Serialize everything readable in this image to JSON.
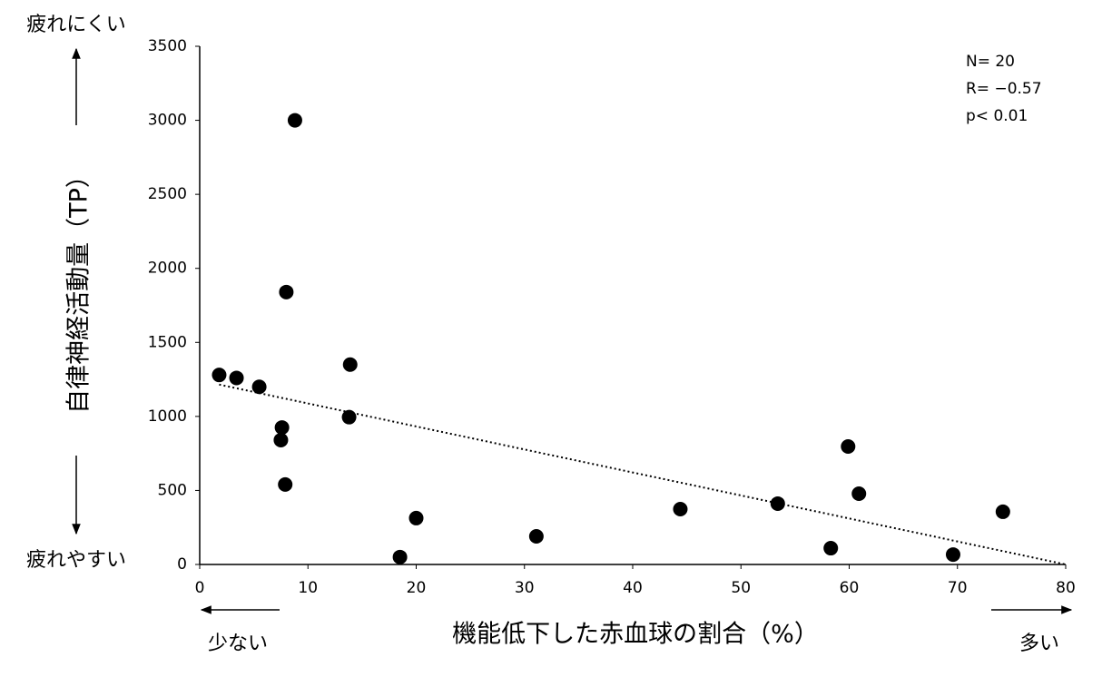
{
  "chart_data": {
    "type": "scatter",
    "y_label": "自律神経活動量（TP）",
    "x_label": "機能低下した赤血球の割合（%）",
    "y_top_note": "疲れにくい",
    "y_bottom_note": "疲れやすい",
    "x_left_note": "少ない",
    "x_right_note": "多い",
    "annotations": [
      "N= 20",
      "R= −0.57",
      "p< 0.01"
    ],
    "color": "#000000",
    "x": [
      1.8,
      3.4,
      5.5,
      7.6,
      7.5,
      7.9,
      8.0,
      8.8,
      13.9,
      13.8,
      18.5,
      20.0,
      31.1,
      44.4,
      53.4,
      58.3,
      59.9,
      60.9,
      69.6,
      74.2
    ],
    "values": [
      1280,
      1260,
      1200,
      925,
      840,
      540,
      1840,
      3000,
      1350,
      995,
      50,
      313,
      190,
      374,
      411,
      110,
      797,
      478,
      67,
      356
    ],
    "trendline": {
      "x": [
        1.8,
        80
      ],
      "y": [
        1215,
        0
      ]
    },
    "xlim": [
      0,
      80
    ],
    "xticks": [
      0,
      10,
      20,
      30,
      40,
      50,
      60,
      70,
      80
    ],
    "ylim": [
      0,
      3500
    ],
    "yticks": [
      0,
      500,
      1000,
      1500,
      2000,
      2500,
      3000,
      3500
    ]
  }
}
